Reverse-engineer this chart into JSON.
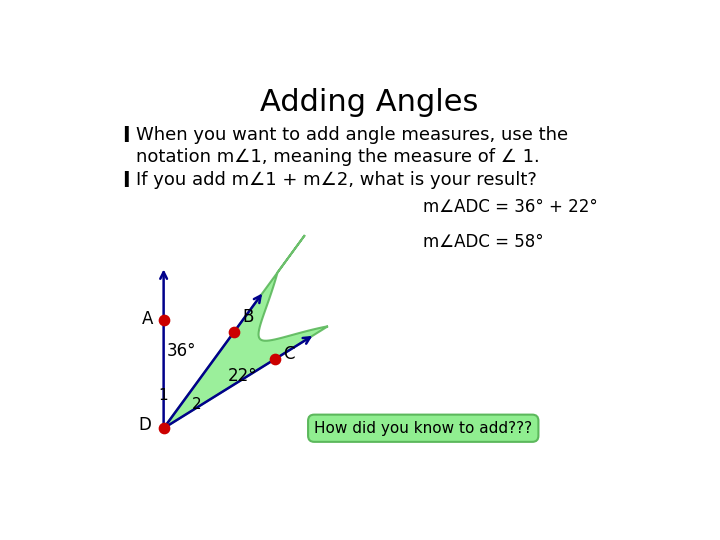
{
  "title": "Adding Angles",
  "bullet1_line1": "When you want to add angle measures, use the",
  "bullet1_line2": "notation m∠1, meaning the measure of ∠ 1.",
  "bullet2": "If you add m∠1 + m∠2, what is your result?",
  "eq1": "m∠ADC = 36° + 22°",
  "eq2": "m∠ADC = 58°",
  "bubble_text": "How did you know to add???",
  "angle1_label": "36°",
  "angle2_label": "22°",
  "label1": "1",
  "label2": "2",
  "label_A": "A",
  "label_B": "B",
  "label_C": "C",
  "label_D": "D",
  "bg_color": "#ffffff",
  "text_color": "#000000",
  "line_color": "#00008B",
  "dot_color": "#cc0000",
  "green_fill": "#90EE90",
  "green_stroke": "#5cb85c",
  "title_fontsize": 22,
  "body_fontsize": 13,
  "eq_fontsize": 12
}
